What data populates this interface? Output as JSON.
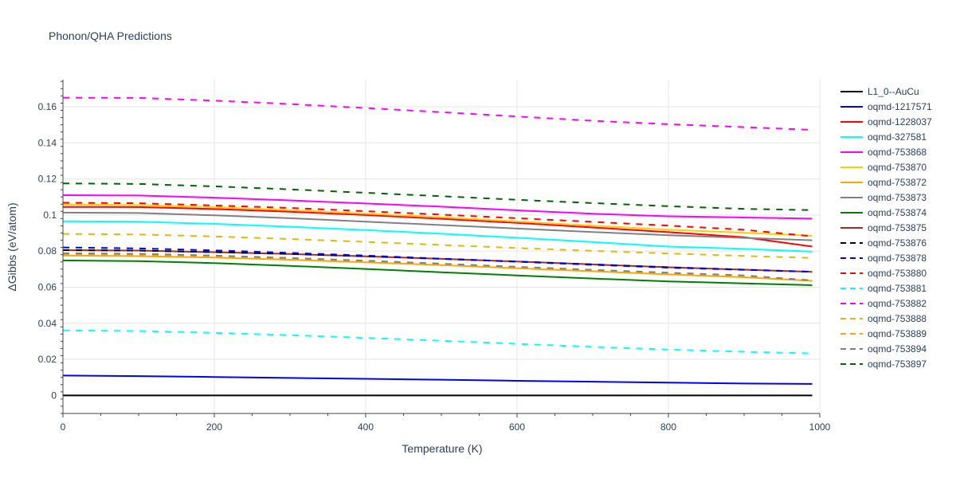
{
  "chart_data": {
    "type": "line",
    "title": "Phonon/QHA Predictions",
    "xlabel": "Temperature (K)",
    "ylabel": "ΔGibbs (eV/atom)",
    "xlim": [
      0,
      1000
    ],
    "ylim": [
      -0.01,
      0.175
    ],
    "xticks": [
      0,
      200,
      400,
      600,
      800,
      1000
    ],
    "xtick_labels": [
      "0",
      "200",
      "400",
      "600",
      "800",
      "1000"
    ],
    "yticks": [
      0,
      0.02,
      0.04,
      0.06,
      0.08,
      0.1,
      0.12,
      0.14,
      0.16
    ],
    "ytick_labels": [
      "0",
      "0.02",
      "0.04",
      "0.06",
      "0.08",
      "0.1",
      "0.12",
      "0.14",
      "0.16"
    ],
    "grid": true,
    "legend_position": "right",
    "x": [
      0,
      100,
      200,
      300,
      400,
      500,
      600,
      700,
      800,
      900,
      990
    ],
    "series": [
      {
        "name": "L1_0--AuCu",
        "color": "#000000",
        "dash": "solid",
        "values": [
          0,
          0,
          0,
          0,
          0,
          0,
          0,
          0,
          0,
          0,
          0
        ]
      },
      {
        "name": "oqmd-1217571",
        "color": "#0000ff",
        "dash": "solid",
        "values": [
          0.011,
          0.0107,
          0.0102,
          0.0097,
          0.0092,
          0.0087,
          0.0081,
          0.0076,
          0.0071,
          0.0066,
          0.0064
        ]
      },
      {
        "name": "oqmd-1228037",
        "color": "#ff0000",
        "dash": "solid",
        "values": [
          0.1045,
          0.1044,
          0.1033,
          0.1018,
          0.1,
          0.0979,
          0.0956,
          0.0931,
          0.0905,
          0.0877,
          0.0825
        ]
      },
      {
        "name": "oqmd-327581",
        "color": "#00ffff",
        "dash": "solid",
        "values": [
          0.0965,
          0.0963,
          0.0951,
          0.0935,
          0.0917,
          0.0896,
          0.0874,
          0.085,
          0.0825,
          0.0812,
          0.0797
        ]
      },
      {
        "name": "oqmd-753868",
        "color": "#ff00ff",
        "dash": "solid",
        "values": [
          0.111,
          0.1108,
          0.1096,
          0.1081,
          0.1064,
          0.1046,
          0.1026,
          0.1007,
          0.0993,
          0.0986,
          0.098
        ]
      },
      {
        "name": "oqmd-753870",
        "color": "#ffcc00",
        "dash": "solid",
        "values": [
          0.1058,
          0.1055,
          0.1043,
          0.1027,
          0.1008,
          0.0987,
          0.0964,
          0.0941,
          0.0918,
          0.0902,
          0.0885
        ]
      },
      {
        "name": "oqmd-753872",
        "color": "#ffa500",
        "dash": "solid",
        "values": [
          0.0775,
          0.0772,
          0.0764,
          0.0752,
          0.0738,
          0.0722,
          0.0705,
          0.0688,
          0.0671,
          0.0655,
          0.0635
        ]
      },
      {
        "name": "oqmd-753873",
        "color": "#808080",
        "dash": "solid",
        "values": [
          0.1013,
          0.1011,
          0.0998,
          0.0982,
          0.0963,
          0.0944,
          0.0925,
          0.0906,
          0.0888,
          0.0873,
          0.086
        ]
      },
      {
        "name": "oqmd-753874",
        "color": "#008000",
        "dash": "solid",
        "values": [
          0.0748,
          0.0744,
          0.0733,
          0.0718,
          0.0701,
          0.0683,
          0.0665,
          0.0648,
          0.0632,
          0.0621,
          0.0611
        ]
      },
      {
        "name": "oqmd-753875",
        "color": "#a52a2a",
        "dash": "solid",
        "values": [
          0.0805,
          0.0803,
          0.0794,
          0.0784,
          0.0771,
          0.0757,
          0.0742,
          0.0726,
          0.071,
          0.0697,
          0.0685
        ]
      },
      {
        "name": "oqmd-753876",
        "color": "#000000",
        "dash": "dash",
        "values": [
          0.0805,
          0.0803,
          0.0794,
          0.0784,
          0.0771,
          0.0757,
          0.0742,
          0.0726,
          0.071,
          0.0697,
          0.0685
        ]
      },
      {
        "name": "oqmd-753878",
        "color": "#0000ff",
        "dash": "dash",
        "values": [
          0.082,
          0.0815,
          0.0804,
          0.079,
          0.0775,
          0.0758,
          0.0741,
          0.0724,
          0.0708,
          0.0696,
          0.0685
        ]
      },
      {
        "name": "oqmd-753880",
        "color": "#ff0000",
        "dash": "dash",
        "values": [
          0.1068,
          0.1065,
          0.1053,
          0.1039,
          0.1021,
          0.1002,
          0.0982,
          0.0962,
          0.0941,
          0.0918,
          0.0882
        ]
      },
      {
        "name": "oqmd-753881",
        "color": "#00ffff",
        "dash": "dash",
        "values": [
          0.036,
          0.0357,
          0.0347,
          0.0334,
          0.0319,
          0.0303,
          0.0286,
          0.0269,
          0.0254,
          0.0242,
          0.0233
        ]
      },
      {
        "name": "oqmd-753882",
        "color": "#ff00ff",
        "dash": "dash",
        "values": [
          0.165,
          0.1649,
          0.1634,
          0.1615,
          0.1593,
          0.157,
          0.1546,
          0.1522,
          0.1503,
          0.1487,
          0.1472
        ]
      },
      {
        "name": "oqmd-753888",
        "color": "#e6b800",
        "dash": "dash",
        "values": [
          0.0895,
          0.0892,
          0.0881,
          0.0867,
          0.0851,
          0.0834,
          0.0817,
          0.0801,
          0.0787,
          0.0773,
          0.0762
        ]
      },
      {
        "name": "oqmd-753889",
        "color": "#ffa500",
        "dash": "dash",
        "values": [
          0.078,
          0.0777,
          0.0768,
          0.0756,
          0.0742,
          0.0726,
          0.071,
          0.0693,
          0.0677,
          0.0662,
          0.0638
        ]
      },
      {
        "name": "oqmd-753894",
        "color": "#808080",
        "dash": "dash",
        "values": [
          0.0788,
          0.0785,
          0.0775,
          0.0762,
          0.0747,
          0.073,
          0.0713,
          0.0696,
          0.068,
          0.0665,
          0.0637
        ]
      },
      {
        "name": "oqmd-753897",
        "color": "#006400",
        "dash": "dash",
        "values": [
          0.1175,
          0.1172,
          0.1159,
          0.1142,
          0.1123,
          0.1104,
          0.1084,
          0.1066,
          0.1049,
          0.1034,
          0.1027
        ]
      }
    ]
  }
}
